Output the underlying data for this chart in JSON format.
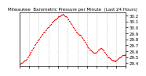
{
  "title": "Milwaukee  Barometric Pressure per Minute  (Last 24 Hours)",
  "line_color": "#ff0000",
  "bg_color": "#ffffff",
  "grid_color": "#aaaaaa",
  "ylim": [
    29.35,
    30.25
  ],
  "yticks": [
    29.4,
    29.5,
    29.6,
    29.7,
    29.8,
    29.9,
    30.0,
    30.1,
    30.2
  ],
  "ylabel_fontsize": 4,
  "title_fontsize": 4,
  "marker_size": 1.0,
  "x": [
    0,
    1,
    2,
    3,
    4,
    5,
    6,
    7,
    8,
    9,
    10,
    11,
    12,
    13,
    14,
    15,
    16,
    17,
    18,
    19,
    20,
    21,
    22,
    23,
    24,
    25,
    26,
    27,
    28,
    29,
    30,
    31,
    32,
    33,
    34,
    35,
    36,
    37,
    38,
    39,
    40,
    41,
    42,
    43,
    44,
    45,
    46,
    47,
    48,
    49,
    50,
    51,
    52,
    53,
    54,
    55,
    56,
    57,
    58,
    59,
    60,
    61,
    62,
    63,
    64,
    65,
    66,
    67,
    68,
    69,
    70,
    71,
    72,
    73,
    74,
    75,
    76,
    77,
    78,
    79,
    80,
    81,
    82,
    83,
    84,
    85,
    86,
    87,
    88,
    89,
    90,
    91,
    92,
    93,
    94,
    95,
    96,
    97,
    98,
    99,
    100,
    101,
    102,
    103,
    104,
    105,
    106,
    107,
    108,
    109,
    110,
    111,
    112,
    113,
    114,
    115,
    116,
    117,
    118,
    119,
    120,
    121,
    122,
    123,
    124,
    125,
    126,
    127,
    128,
    129,
    130,
    131,
    132,
    133,
    134,
    135,
    136,
    137,
    138,
    139
  ],
  "y": [
    29.38,
    29.39,
    29.4,
    29.41,
    29.42,
    29.43,
    29.44,
    29.44,
    29.46,
    29.47,
    29.49,
    29.51,
    29.53,
    29.55,
    29.57,
    29.59,
    29.61,
    29.63,
    29.65,
    29.67,
    29.7,
    29.72,
    29.74,
    29.76,
    29.78,
    29.8,
    29.81,
    29.83,
    29.85,
    29.87,
    29.89,
    29.91,
    29.92,
    29.93,
    29.95,
    29.97,
    29.99,
    30.0,
    30.01,
    30.03,
    30.04,
    30.06,
    30.08,
    30.09,
    30.11,
    30.12,
    30.13,
    30.14,
    30.15,
    30.16,
    30.17,
    30.18,
    30.19,
    30.19,
    30.2,
    30.21,
    30.21,
    30.22,
    30.21,
    30.2,
    30.19,
    30.18,
    30.17,
    30.15,
    30.13,
    30.11,
    30.09,
    30.07,
    30.05,
    30.03,
    30.01,
    29.99,
    29.97,
    29.95,
    29.93,
    29.91,
    29.9,
    29.89,
    29.88,
    29.87,
    29.86,
    29.84,
    29.82,
    29.8,
    29.78,
    29.76,
    29.74,
    29.72,
    29.7,
    29.68,
    29.66,
    29.65,
    29.63,
    29.62,
    29.61,
    29.6,
    29.59,
    29.58,
    29.57,
    29.57,
    29.58,
    29.59,
    29.6,
    29.62,
    29.63,
    29.64,
    29.65,
    29.65,
    29.64,
    29.63,
    29.61,
    29.59,
    29.57,
    29.55,
    29.53,
    29.51,
    29.5,
    29.49,
    29.48,
    29.47,
    29.46,
    29.45,
    29.44,
    29.44,
    29.43,
    29.43,
    29.44,
    29.45,
    29.46,
    29.47,
    29.48,
    29.49,
    29.5,
    29.51,
    29.52,
    29.53,
    29.53,
    29.54,
    29.54,
    29.55
  ]
}
